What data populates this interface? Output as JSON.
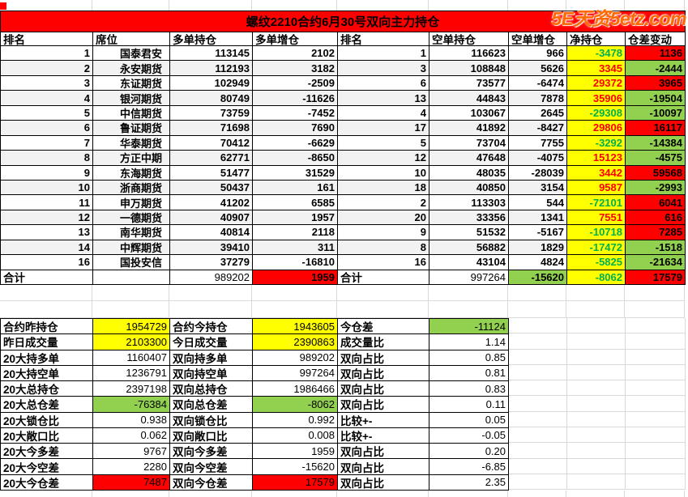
{
  "title": "螺纹2210合约6月30号双向主力持仓",
  "watermark": "5E天资5etz.com",
  "colors": {
    "title_bar_bg": "#FF0000",
    "highlight_yellow": "#FFFF00",
    "highlight_green": "#92D050",
    "highlight_red": "#FF0000",
    "positive_text": "#FF0000",
    "negative_text": "#00B050",
    "row_band": "#F2F2F2",
    "watermark_orange": "#FF6A00"
  },
  "main_table": {
    "headers": [
      "排名",
      "席位",
      "多单持仓",
      "多单增仓",
      "排名",
      "空单持仓",
      "空单增仓",
      "净持仓",
      "仓差变动"
    ],
    "rows": [
      {
        "cells": [
          "1",
          "国泰君安",
          "113145",
          "2102",
          "1",
          "116623",
          "966",
          "-3478",
          "1136"
        ]
      },
      {
        "cells": [
          "2",
          "永安期货",
          "112193",
          "3182",
          "3",
          "108848",
          "5626",
          "3345",
          "-2444"
        ]
      },
      {
        "cells": [
          "3",
          "东证期货",
          "102949",
          "-2509",
          "6",
          "73577",
          "-6474",
          "29372",
          "3965"
        ]
      },
      {
        "cells": [
          "4",
          "银河期货",
          "80749",
          "-11626",
          "13",
          "44843",
          "7878",
          "35906",
          "-19504"
        ]
      },
      {
        "cells": [
          "5",
          "中信期货",
          "73759",
          "-7452",
          "4",
          "103067",
          "2645",
          "-29308",
          "-10097"
        ]
      },
      {
        "cells": [
          "6",
          "鲁证期货",
          "71698",
          "7690",
          "17",
          "41892",
          "-8427",
          "29806",
          "16117"
        ]
      },
      {
        "cells": [
          "7",
          "华泰期货",
          "70412",
          "-6629",
          "5",
          "73704",
          "7755",
          "-3292",
          "-14384"
        ]
      },
      {
        "cells": [
          "8",
          "方正中期",
          "62771",
          "-8650",
          "12",
          "47648",
          "-4075",
          "15123",
          "-4575"
        ]
      },
      {
        "cells": [
          "9",
          "东海期货",
          "51477",
          "31529",
          "10",
          "48035",
          "-28039",
          "3442",
          "59568"
        ]
      },
      {
        "cells": [
          "10",
          "浙商期货",
          "50437",
          "161",
          "18",
          "40850",
          "3154",
          "9587",
          "-2993"
        ]
      },
      {
        "cells": [
          "11",
          "申万期货",
          "41202",
          "6585",
          "2",
          "113303",
          "544",
          "-72101",
          "6041"
        ]
      },
      {
        "cells": [
          "12",
          "一德期货",
          "40907",
          "1957",
          "20",
          "33356",
          "1341",
          "7551",
          "616"
        ]
      },
      {
        "cells": [
          "13",
          "南华期货",
          "40814",
          "2118",
          "9",
          "51532",
          "-5167",
          "-10718",
          "7285"
        ]
      },
      {
        "cells": [
          "14",
          "中辉期货",
          "39410",
          "311",
          "8",
          "56882",
          "1829",
          "-17472",
          "-1518"
        ]
      },
      {
        "cells": [
          "16",
          "国投安信",
          "37279",
          "-16810",
          "16",
          "43104",
          "4824",
          "-5825",
          "-21634"
        ]
      }
    ],
    "total": {
      "cells": [
        "合计",
        "",
        "989202",
        "1959",
        "合计",
        "997264",
        "-15620",
        "-8062",
        "17579"
      ],
      "fills": {
        "3": "red",
        "6": "green"
      }
    }
  },
  "summary_table": {
    "rows": [
      {
        "cells": [
          "合约昨持仓",
          "1954729",
          "合约今持仓",
          "1943605",
          "今仓差",
          "-11124"
        ],
        "fills": [
          null,
          "yellow",
          null,
          "yellow",
          null,
          "green"
        ]
      },
      {
        "cells": [
          "昨日成交量",
          "2103300",
          "今日成交量",
          "2390863",
          "成交量比",
          "1.14"
        ],
        "fills": [
          null,
          "yellow",
          null,
          "yellow",
          null,
          null
        ]
      },
      {
        "cells": [
          "20大持多单",
          "1160407",
          "双向持多单",
          "989202",
          "双向占比",
          "0.85"
        ],
        "fills": [
          null,
          null,
          null,
          null,
          null,
          null
        ]
      },
      {
        "cells": [
          "20大持空单",
          "1236791",
          "双向持空单",
          "997264",
          "双向占比",
          "0.81"
        ],
        "fills": [
          null,
          null,
          null,
          null,
          null,
          null
        ]
      },
      {
        "cells": [
          "20大总持仓",
          "2397198",
          "双向总持仓",
          "1986466",
          "双向占比",
          "0.83"
        ],
        "fills": [
          null,
          null,
          null,
          null,
          null,
          null
        ]
      },
      {
        "cells": [
          "20大总仓差",
          "-76384",
          "双向总仓差",
          "-8062",
          "双向占比",
          "0.11"
        ],
        "fills": [
          null,
          "green",
          null,
          "green",
          null,
          null
        ]
      },
      {
        "cells": [
          "20大锁仓比",
          "0.938",
          "双向锁仓比",
          "0.992",
          "比较+-",
          "0.05"
        ],
        "fills": [
          null,
          null,
          null,
          null,
          null,
          null
        ]
      },
      {
        "cells": [
          "20大敞口比",
          "0.062",
          "双向敞口比",
          "0.008",
          "比较+-",
          "-0.05"
        ],
        "fills": [
          null,
          null,
          null,
          null,
          null,
          null
        ]
      },
      {
        "cells": [
          "20大今多差",
          "9767",
          "双向今多差",
          "1959",
          "双向占比",
          "0.20"
        ],
        "fills": [
          null,
          null,
          null,
          null,
          null,
          null
        ]
      },
      {
        "cells": [
          "20大今空差",
          "2280",
          "双向今空差",
          "-15620",
          "双向占比",
          "-6.85"
        ],
        "fills": [
          null,
          null,
          null,
          null,
          null,
          null
        ]
      },
      {
        "cells": [
          "20大今仓差",
          "7487",
          "双向今仓差",
          "17579",
          "双向占比",
          "2.35"
        ],
        "fills": [
          null,
          "red",
          null,
          "red",
          null,
          null
        ]
      }
    ]
  }
}
